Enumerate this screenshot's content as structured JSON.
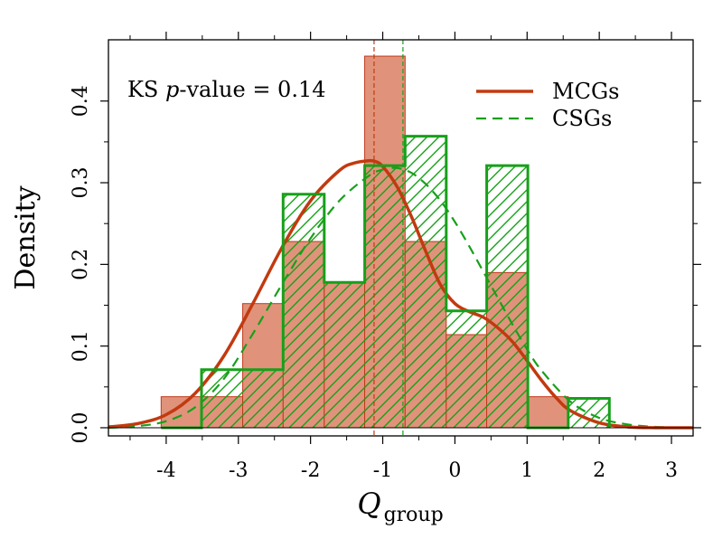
{
  "chart_data": {
    "type": "histogram",
    "title": "",
    "xlabel": {
      "main": "Q",
      "subscript": "group"
    },
    "ylabel": "Density",
    "xlim": [
      -4.8,
      3.3
    ],
    "ylim": [
      -0.01,
      0.475
    ],
    "x_ticks": [
      -4,
      -3,
      -2,
      -1,
      0,
      1,
      2,
      3
    ],
    "x_tick_labels": [
      "-4",
      "-3",
      "-2",
      "-1",
      "0",
      "1",
      "2",
      "3"
    ],
    "y_ticks": [
      0.0,
      0.1,
      0.2,
      0.3,
      0.4
    ],
    "y_tick_labels": [
      "0.0",
      "0.1",
      "0.2",
      "0.3",
      "0.4"
    ],
    "grid": false,
    "annotation": {
      "prefix": "KS ",
      "italic": "p",
      "suffix": "-value = 0.14"
    },
    "legend": {
      "position": "top-right",
      "entries": [
        {
          "label": "MCGs",
          "series": "MCGs"
        },
        {
          "label": "CSGs",
          "series": "CSGs"
        }
      ]
    },
    "series": [
      {
        "name": "MCGs",
        "style": "filled-histogram",
        "color": "#e0937a",
        "edge_color": "#c0391b",
        "bin_edges": [
          -4.07,
          -3.51,
          -2.94,
          -2.38,
          -1.81,
          -1.25,
          -0.69,
          -0.12,
          0.44,
          1.01,
          1.57
        ],
        "density": [
          0.038,
          0.038,
          0.152,
          0.228,
          0.178,
          0.455,
          0.228,
          0.114,
          0.19,
          0.038
        ],
        "median_line": -1.12,
        "kde_color": "#c23a10",
        "kde_x": [
          -4.8,
          -4.4,
          -4.0,
          -3.6,
          -3.2,
          -2.8,
          -2.4,
          -2.0,
          -1.6,
          -1.4,
          -1.2,
          -1.1,
          -1.0,
          -0.8,
          -0.6,
          -0.4,
          -0.2,
          0.0,
          0.2,
          0.4,
          0.6,
          0.8,
          1.0,
          1.2,
          1.4,
          1.6,
          2.0,
          2.4,
          2.8,
          3.3
        ],
        "kde_y": [
          0.001,
          0.005,
          0.016,
          0.042,
          0.088,
          0.152,
          0.22,
          0.278,
          0.315,
          0.324,
          0.327,
          0.326,
          0.32,
          0.295,
          0.258,
          0.215,
          0.175,
          0.152,
          0.142,
          0.135,
          0.122,
          0.105,
          0.082,
          0.058,
          0.037,
          0.021,
          0.006,
          0.001,
          0.0,
          0.0
        ]
      },
      {
        "name": "CSGs",
        "style": "hatched-histogram",
        "color": "#17a01a",
        "bin_edges": [
          -4.07,
          -3.51,
          -2.94,
          -2.38,
          -1.81,
          -1.25,
          -0.69,
          -0.12,
          0.44,
          1.01,
          1.57,
          2.14
        ],
        "density": [
          0.0,
          0.071,
          0.071,
          0.286,
          0.178,
          0.321,
          0.357,
          0.143,
          0.321,
          0.0,
          0.036
        ],
        "median_line": -0.72,
        "kde_x": [
          -4.8,
          -4.4,
          -4.0,
          -3.6,
          -3.2,
          -2.8,
          -2.4,
          -2.0,
          -1.6,
          -1.2,
          -1.0,
          -0.8,
          -0.6,
          -0.4,
          -0.2,
          0.0,
          0.2,
          0.4,
          0.6,
          0.8,
          1.0,
          1.2,
          1.6,
          2.0,
          2.4,
          2.8,
          3.3
        ],
        "kde_y": [
          0.0,
          0.002,
          0.008,
          0.025,
          0.06,
          0.115,
          0.175,
          0.232,
          0.278,
          0.308,
          0.316,
          0.318,
          0.312,
          0.298,
          0.278,
          0.252,
          0.222,
          0.19,
          0.158,
          0.126,
          0.096,
          0.07,
          0.032,
          0.012,
          0.004,
          0.001,
          0.0
        ]
      }
    ]
  }
}
